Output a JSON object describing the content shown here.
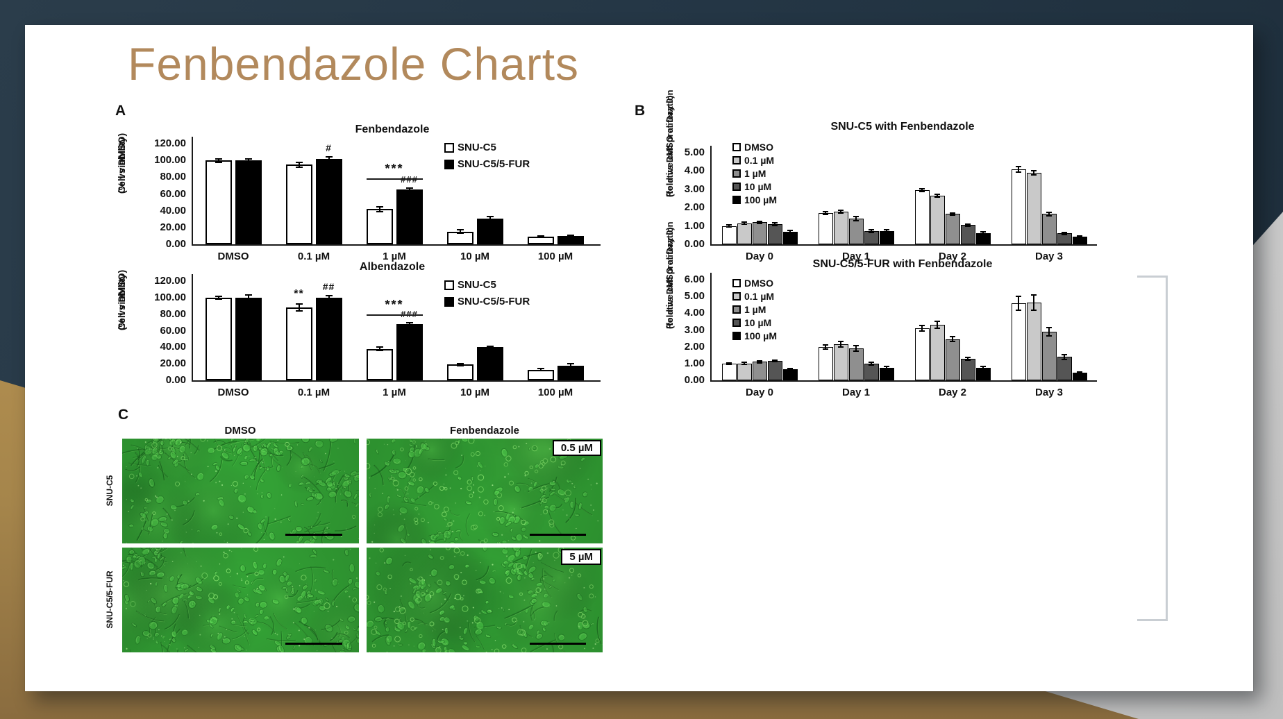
{
  "slide": {
    "title": "Fenbendazole Charts"
  },
  "panels": {
    "a_label": "A",
    "b_label": "B",
    "c_label": "C"
  },
  "colors": {
    "background_navy": "#243645",
    "background_gold": "#b08f52",
    "background_gray": "#c9c9c9",
    "title_tan": "#b2895c",
    "bar_white": "#ffffff",
    "bar_lightgray": "#c9c9c9",
    "bar_midgray": "#8f8f8f",
    "bar_darkgray": "#555555",
    "bar_black": "#000000",
    "micrograph_green": "#35a238"
  },
  "chart_data": [
    {
      "type": "bar",
      "title": "Fenbendazole",
      "ylabel_lines": [
        "Cell viability",
        "(% vs DMSO)"
      ],
      "ylim": [
        0,
        120
      ],
      "ytick_step": 20,
      "categories": [
        "DMSO",
        "0.1 µM",
        "1 µM",
        "10 µM",
        "100 µM"
      ],
      "series": [
        {
          "name": "SNU-C5",
          "color": "#ffffff",
          "values": [
            100,
            95,
            42,
            15,
            9
          ],
          "errors": [
            2,
            3,
            3,
            2,
            1
          ]
        },
        {
          "name": "SNU-C5/5-FUR",
          "color": "#000000",
          "values": [
            100,
            102,
            65,
            31,
            10
          ],
          "errors": [
            1.5,
            2,
            2,
            2,
            1
          ]
        }
      ],
      "legend_position": "top-right",
      "bar_annotations": [
        {
          "cat": 1,
          "series": 1,
          "text": "#",
          "fs": 14
        },
        {
          "cat": 2,
          "series": 1,
          "text": "###",
          "fs": 13
        }
      ],
      "group_annotations": [
        {
          "cat": 2,
          "text": "***",
          "line_y": 79
        }
      ]
    },
    {
      "type": "bar",
      "title": "Albendazole",
      "ylabel_lines": [
        "Cell viability",
        "(% vs DMSO)"
      ],
      "ylim": [
        0,
        120
      ],
      "ytick_step": 20,
      "categories": [
        "DMSO",
        "0.1 µM",
        "1 µM",
        "10 µM",
        "100 µM"
      ],
      "series": [
        {
          "name": "SNU-C5",
          "color": "#ffffff",
          "values": [
            100,
            88,
            38,
            19,
            13
          ],
          "errors": [
            1.5,
            4,
            2,
            1.5,
            1
          ]
        },
        {
          "name": "SNU-C5/5-FUR",
          "color": "#000000",
          "values": [
            100,
            100,
            68,
            40,
            18
          ],
          "errors": [
            3,
            2,
            2,
            1.5,
            2
          ]
        }
      ],
      "legend_position": "top-right",
      "bar_annotations": [
        {
          "cat": 1,
          "series": 0,
          "text": "**",
          "fs": 16
        },
        {
          "cat": 1,
          "series": 1,
          "text": "##",
          "fs": 14
        },
        {
          "cat": 2,
          "series": 1,
          "text": "###",
          "fs": 13
        }
      ],
      "group_annotations": [
        {
          "cat": 2,
          "text": "***",
          "line_y": 80
        }
      ]
    },
    {
      "type": "bar",
      "title": "SNU-C5 with Fenbendazole",
      "ylabel_lines": [
        "Relative cell proliferation",
        "(fold vs DMSO at Day 0)"
      ],
      "ylim": [
        0,
        5
      ],
      "ytick_step": 1,
      "categories": [
        "Day 0",
        "Day 1",
        "Day 2",
        "Day 3"
      ],
      "series": [
        {
          "name": "DMSO",
          "color": "#ffffff",
          "values": [
            1.0,
            1.7,
            2.95,
            4.1
          ],
          "errors": [
            0.07,
            0.08,
            0.08,
            0.15
          ]
        },
        {
          "name": "0.1 µM",
          "color": "#c9c9c9",
          "values": [
            1.15,
            1.78,
            2.65,
            3.9
          ],
          "errors": [
            0.07,
            0.08,
            0.07,
            0.12
          ]
        },
        {
          "name": "1 µM",
          "color": "#8f8f8f",
          "values": [
            1.2,
            1.4,
            1.65,
            1.65
          ],
          "errors": [
            0.06,
            0.1,
            0.07,
            0.1
          ]
        },
        {
          "name": "10 µM",
          "color": "#555555",
          "values": [
            1.1,
            0.72,
            1.05,
            0.6
          ],
          "errors": [
            0.06,
            0.06,
            0.06,
            0.06
          ]
        },
        {
          "name": "100 µM",
          "color": "#000000",
          "values": [
            0.7,
            0.73,
            0.62,
            0.42
          ],
          "errors": [
            0.05,
            0.05,
            0.05,
            0.05
          ]
        }
      ],
      "legend_position": "in-top-left",
      "bar_annotations": [],
      "group_annotations": []
    },
    {
      "type": "bar",
      "title": "SNU-C5/5-FUR with Fenbendazole",
      "ylabel_lines": [
        "Relative cell proliferation",
        "(fold vs DMSO at Day 0)"
      ],
      "ylim": [
        0,
        6
      ],
      "ytick_step": 1,
      "categories": [
        "Day 0",
        "Day 1",
        "Day 2",
        "Day 3"
      ],
      "series": [
        {
          "name": "DMSO",
          "color": "#ffffff",
          "values": [
            1.0,
            2.0,
            3.1,
            4.6
          ],
          "errors": [
            0.05,
            0.12,
            0.15,
            0.4
          ]
        },
        {
          "name": "0.1 µM",
          "color": "#c9c9c9",
          "values": [
            1.0,
            2.15,
            3.3,
            4.65
          ],
          "errors": [
            0.06,
            0.15,
            0.2,
            0.45
          ]
        },
        {
          "name": "1 µM",
          "color": "#8f8f8f",
          "values": [
            1.1,
            1.9,
            2.45,
            2.9
          ],
          "errors": [
            0.06,
            0.15,
            0.15,
            0.25
          ]
        },
        {
          "name": "10 µM",
          "color": "#555555",
          "values": [
            1.15,
            1.0,
            1.3,
            1.4
          ],
          "errors": [
            0.05,
            0.08,
            0.08,
            0.15
          ]
        },
        {
          "name": "100 µM",
          "color": "#000000",
          "values": [
            0.65,
            0.75,
            0.75,
            0.45
          ],
          "errors": [
            0.07,
            0.06,
            0.07,
            0.06
          ]
        }
      ],
      "legend_position": "in-top-left",
      "bar_annotations": [],
      "group_annotations": []
    }
  ],
  "panel_c": {
    "col_headers": [
      "DMSO",
      "Fenbendazole"
    ],
    "row_labels": [
      "SNU-C5",
      "SNU-C5/5-FUR"
    ],
    "dose_labels": [
      "0.5 µM",
      "5 µM"
    ]
  }
}
